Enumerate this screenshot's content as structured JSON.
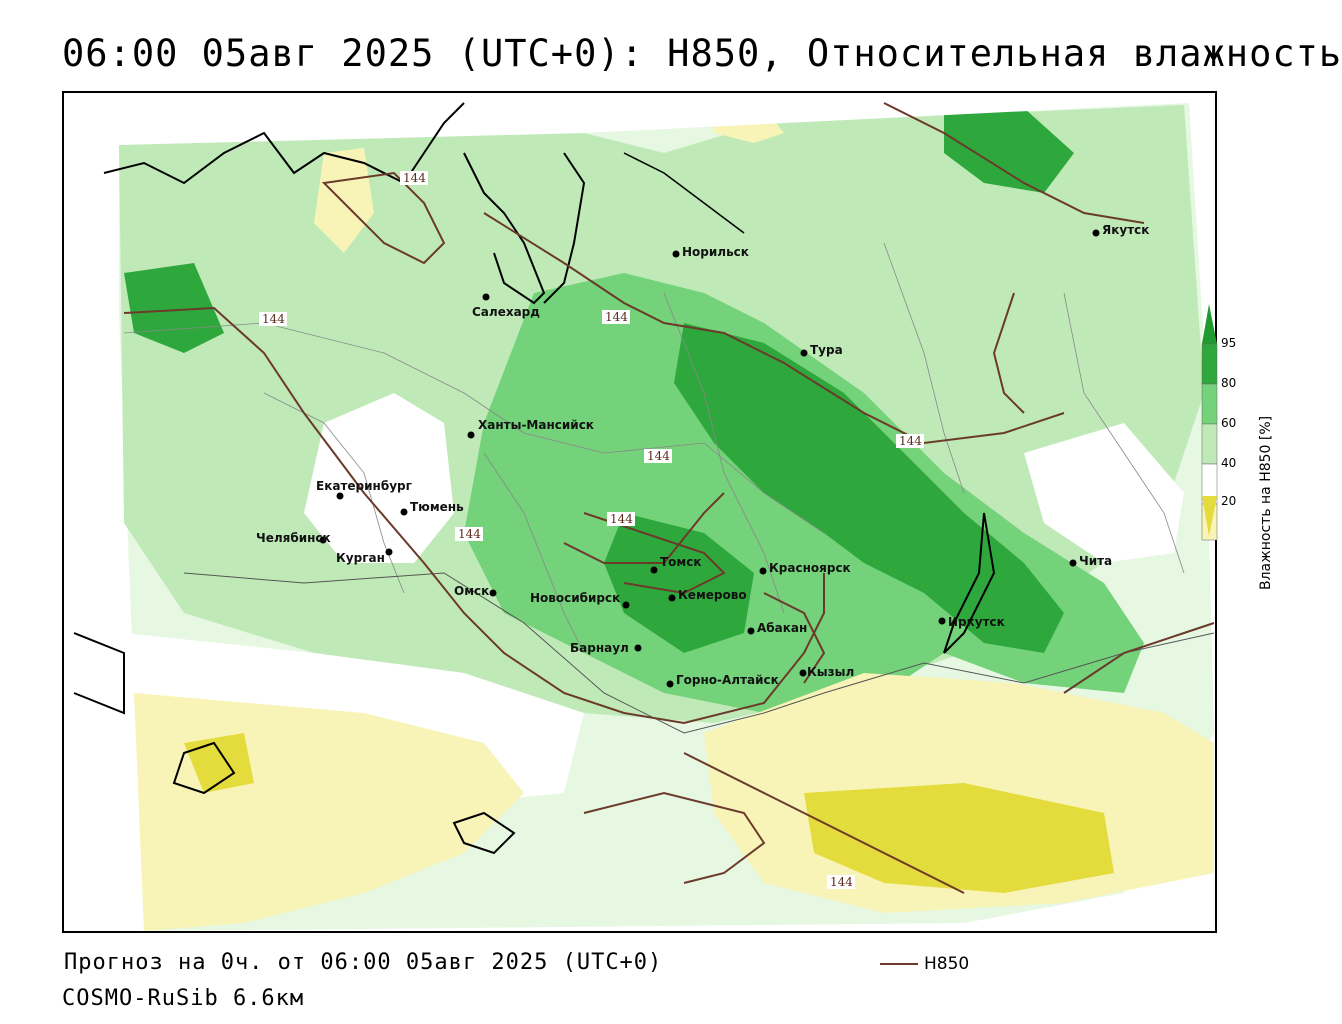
{
  "header": {
    "title": "06:00 05авг 2025 (UTC+0): H850, Относительная влажность"
  },
  "map": {
    "cities": [
      {
        "name": "Салехард"
      },
      {
        "name": "Норильск"
      },
      {
        "name": "Якутск"
      },
      {
        "name": "Тура"
      },
      {
        "name": "Ханты-Мансийск"
      },
      {
        "name": "Екатеринбург"
      },
      {
        "name": "Тюмень"
      },
      {
        "name": "Челябинск"
      },
      {
        "name": "Курган"
      },
      {
        "name": "Омск"
      },
      {
        "name": "Новосибирск"
      },
      {
        "name": "Томск"
      },
      {
        "name": "Кемерово"
      },
      {
        "name": "Красноярск"
      },
      {
        "name": "Абакан"
      },
      {
        "name": "Барнаул"
      },
      {
        "name": "Горно-Алтайск"
      },
      {
        "name": "Кызыл"
      },
      {
        "name": "Иркутск"
      },
      {
        "name": "Чита"
      }
    ],
    "contour_label": "144",
    "colors": {
      "green_dark": "#1f9a2e",
      "green_mid": "#4cc45a",
      "green_light": "#a8e6a0",
      "green_pale": "#d8f3d2",
      "yellow_light": "#f8f4b8",
      "yellow_dark": "#e4dc3c",
      "contour": "#6b3a2a"
    }
  },
  "legend": {
    "title": "Влажность на H850 [%]",
    "ticks": [
      "95",
      "80",
      "60",
      "40",
      "20"
    ]
  },
  "footer": {
    "forecast": "Прогноз на 0ч. от 06:00 05авг 2025 (UTC+0)",
    "model": "COSMO-RuSib 6.6км",
    "contour_legend_label": "H850"
  }
}
